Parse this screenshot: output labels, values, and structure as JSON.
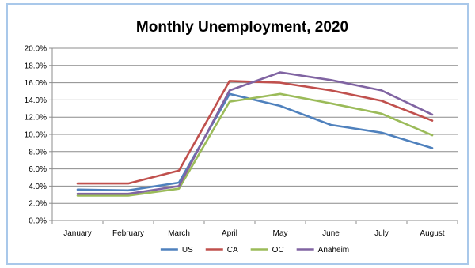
{
  "chart_data": {
    "type": "line",
    "title": "Monthly Unemployment, 2020",
    "xlabel": "",
    "ylabel": "",
    "categories": [
      "January",
      "February",
      "March",
      "April",
      "May",
      "June",
      "July",
      "August"
    ],
    "ylim": [
      0,
      20
    ],
    "yticks": [
      "0.0%",
      "2.0%",
      "4.0%",
      "6.0%",
      "8.0%",
      "10.0%",
      "12.0%",
      "14.0%",
      "16.0%",
      "18.0%",
      "20.0%"
    ],
    "grid": true,
    "legend_position": "bottom",
    "series": [
      {
        "name": "US",
        "color": "#4f81bd",
        "values": [
          3.6,
          3.5,
          4.4,
          14.7,
          13.3,
          11.1,
          10.2,
          8.4
        ]
      },
      {
        "name": "CA",
        "color": "#c0504d",
        "values": [
          4.3,
          4.3,
          5.8,
          16.2,
          16.0,
          15.1,
          13.9,
          11.6
        ]
      },
      {
        "name": "OC",
        "color": "#9bbb59",
        "values": [
          2.9,
          2.9,
          3.7,
          13.8,
          14.7,
          13.6,
          12.4,
          9.9
        ]
      },
      {
        "name": "Anaheim",
        "color": "#8064a2",
        "values": [
          3.1,
          3.1,
          4.0,
          15.1,
          17.2,
          16.3,
          15.1,
          12.3
        ]
      }
    ]
  }
}
